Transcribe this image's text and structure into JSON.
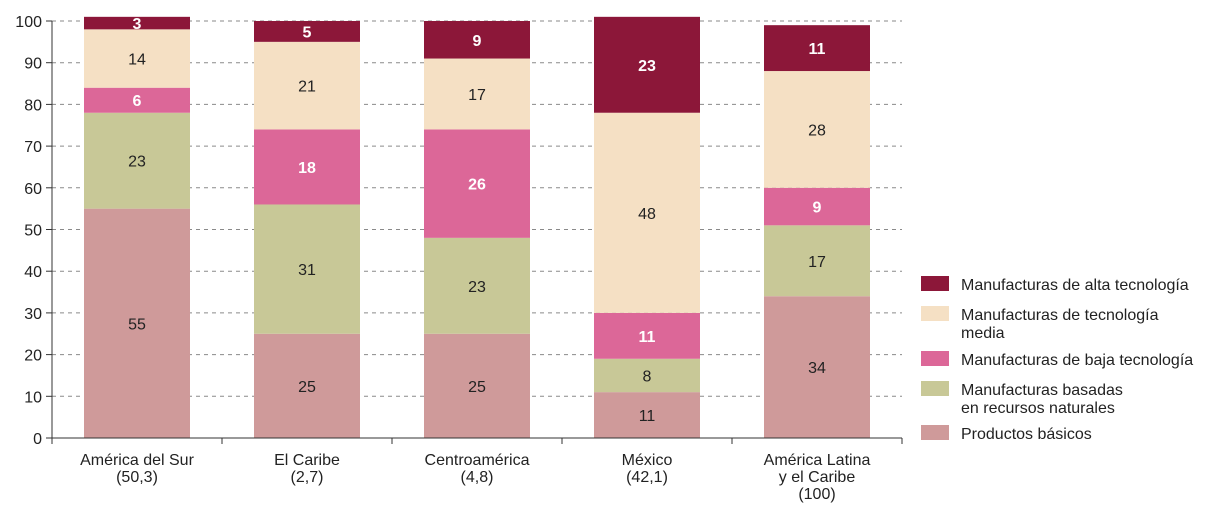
{
  "chart_data": {
    "type": "bar",
    "stacked": true,
    "categories": [
      [
        "América del Sur",
        "(50,3)"
      ],
      [
        "El Caribe",
        "(2,7)"
      ],
      [
        "Centroamérica",
        "(4,8)"
      ],
      [
        "México",
        "(42,1)"
      ],
      [
        "América Latina",
        "y el Caribe",
        "(100)"
      ]
    ],
    "series": [
      {
        "name": "Productos básicos",
        "color": "#cf9a9a",
        "label_color": "#222222",
        "bold": false,
        "values": [
          55,
          25,
          25,
          11,
          34
        ]
      },
      {
        "name": "Manufacturas basadas\nen recursos naturales",
        "color": "#c8c897",
        "label_color": "#222222",
        "bold": false,
        "values": [
          23,
          31,
          23,
          8,
          17
        ]
      },
      {
        "name": "Manufacturas de baja tecnología",
        "color": "#dc6798",
        "label_color": "#ffffff",
        "bold": true,
        "values": [
          6,
          18,
          26,
          11,
          9
        ]
      },
      {
        "name": "Manufacturas de tecnología\nmedia",
        "color": "#f5e0c4",
        "label_color": "#222222",
        "bold": false,
        "values": [
          14,
          21,
          17,
          48,
          28
        ]
      },
      {
        "name": "Manufacturas de alta tecnología",
        "color": "#8c1739",
        "label_color": "#ffffff",
        "bold": true,
        "values": [
          3,
          5,
          9,
          23,
          11
        ]
      }
    ],
    "ylim": [
      0,
      100
    ],
    "yticks": [
      0,
      10,
      20,
      30,
      40,
      50,
      60,
      70,
      80,
      90,
      100
    ],
    "grid": true,
    "legend_position": "right",
    "title": "",
    "xlabel": "",
    "ylabel": ""
  }
}
